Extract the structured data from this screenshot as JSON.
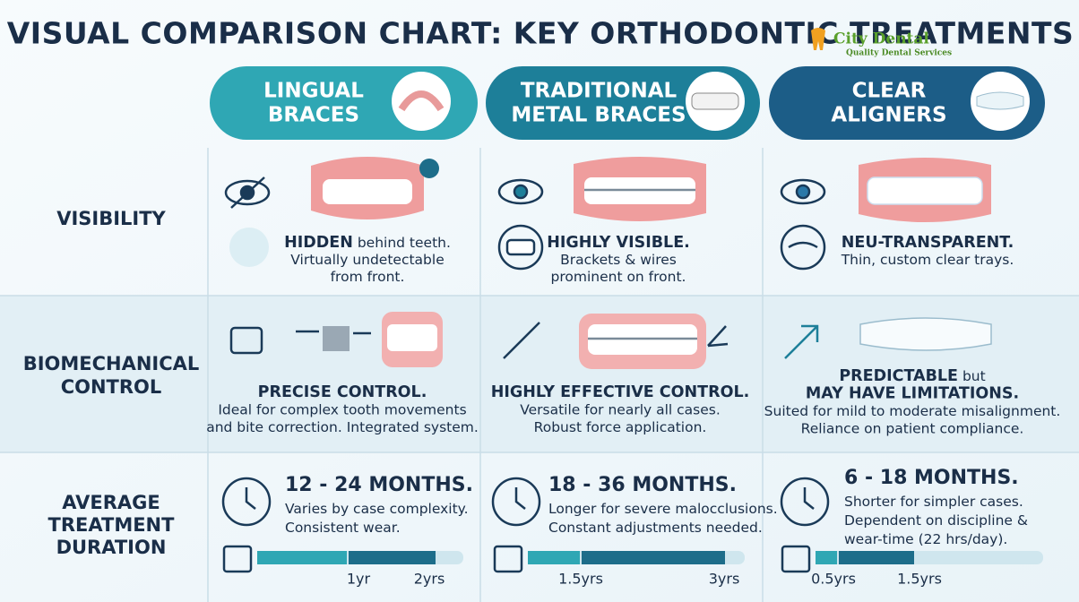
{
  "header": {
    "title": "VISUAL COMPARISON CHART: KEY ORTHODONTIC TREATMENTS",
    "logo": {
      "name": "City Dental",
      "tagline": "Quality Dental Services"
    }
  },
  "columns": [
    {
      "title": [
        "LINGUAL",
        "BRACES"
      ]
    },
    {
      "title": [
        "TRADITIONAL",
        "METAL BRACES"
      ]
    },
    {
      "title": [
        "CLEAR",
        "ALIGNERS"
      ]
    }
  ],
  "rows": [
    {
      "label": [
        "VISIBILITY"
      ],
      "cells": [
        {
          "lines": [
            [
              {
                "text": "HIDDEN",
                "bold": true
              },
              {
                "text": " behind teeth."
              }
            ],
            [
              {
                "text": "Virtually undetectable"
              }
            ],
            [
              {
                "text": "from front."
              }
            ]
          ]
        },
        {
          "lines": [
            [
              {
                "text": "HIGHLY VISIBLE.",
                "bold": true
              }
            ],
            [
              {
                "text": "Brackets & wires"
              }
            ],
            [
              {
                "text": "prominent on front."
              }
            ]
          ]
        },
        {
          "lines": [
            [
              {
                "text": "NEU-TRANSPARENT.",
                "bold": true
              }
            ],
            [
              {
                "text": "Thin, custom clear trays."
              }
            ]
          ]
        }
      ]
    },
    {
      "label": [
        "BIOMECHANICAL",
        "CONTROL"
      ],
      "cells": [
        {
          "lines": [
            [
              {
                "text": "PRECISE CONTROL.",
                "bold": true
              }
            ],
            [
              {
                "text": "Ideal for complex tooth movements"
              }
            ],
            [
              {
                "text": "and bite correction. Integrated system."
              }
            ]
          ]
        },
        {
          "lines": [
            [
              {
                "text": "HIGHLY EFFECTIVE CONTROL.",
                "bold": true
              }
            ],
            [
              {
                "text": "Versatile for nearly all cases."
              }
            ],
            [
              {
                "text": "Robust force application."
              }
            ]
          ]
        },
        {
          "lines": [
            [
              {
                "text": "PREDICTABLE",
                "bold": true
              },
              {
                "text": " but"
              }
            ],
            [
              {
                "text": "MAY HAVE LIMITATIONS.",
                "bold": true
              }
            ],
            [
              {
                "text": "Suited for mild to moderate misalignment."
              }
            ],
            [
              {
                "text": "Reliance on patient compliance."
              }
            ]
          ]
        }
      ]
    },
    {
      "label": [
        "AVERAGE",
        "TREATMENT",
        "DURATION"
      ],
      "cells": [
        {
          "lines": [
            [
              {
                "text": "12 - 24 MONTHS.",
                "bold": true
              }
            ],
            [
              {
                "text": "Varies by case complexity."
              }
            ],
            [
              {
                "text": "Consistent wear."
              }
            ]
          ],
          "timeline": [
            "1yr",
            "2yrs"
          ]
        },
        {
          "lines": [
            [
              {
                "text": "18 - 36 MONTHS.",
                "bold": true
              }
            ],
            [
              {
                "text": "Longer for severe malocclusions."
              }
            ],
            [
              {
                "text": "Constant adjustments needed."
              }
            ]
          ],
          "timeline": [
            "1.5yrs",
            "3yrs"
          ]
        },
        {
          "lines": [
            [
              {
                "text": "6 - 18 MONTHS.",
                "bold": true
              }
            ],
            [
              {
                "text": "Shorter for simpler cases."
              }
            ],
            [
              {
                "text": "Dependent on discipline &"
              }
            ],
            [
              {
                "text": "wear-time (22 hrs/day)."
              }
            ]
          ],
          "timeline": [
            "0.5yrs",
            "1.5yrs"
          ]
        }
      ]
    }
  ]
}
